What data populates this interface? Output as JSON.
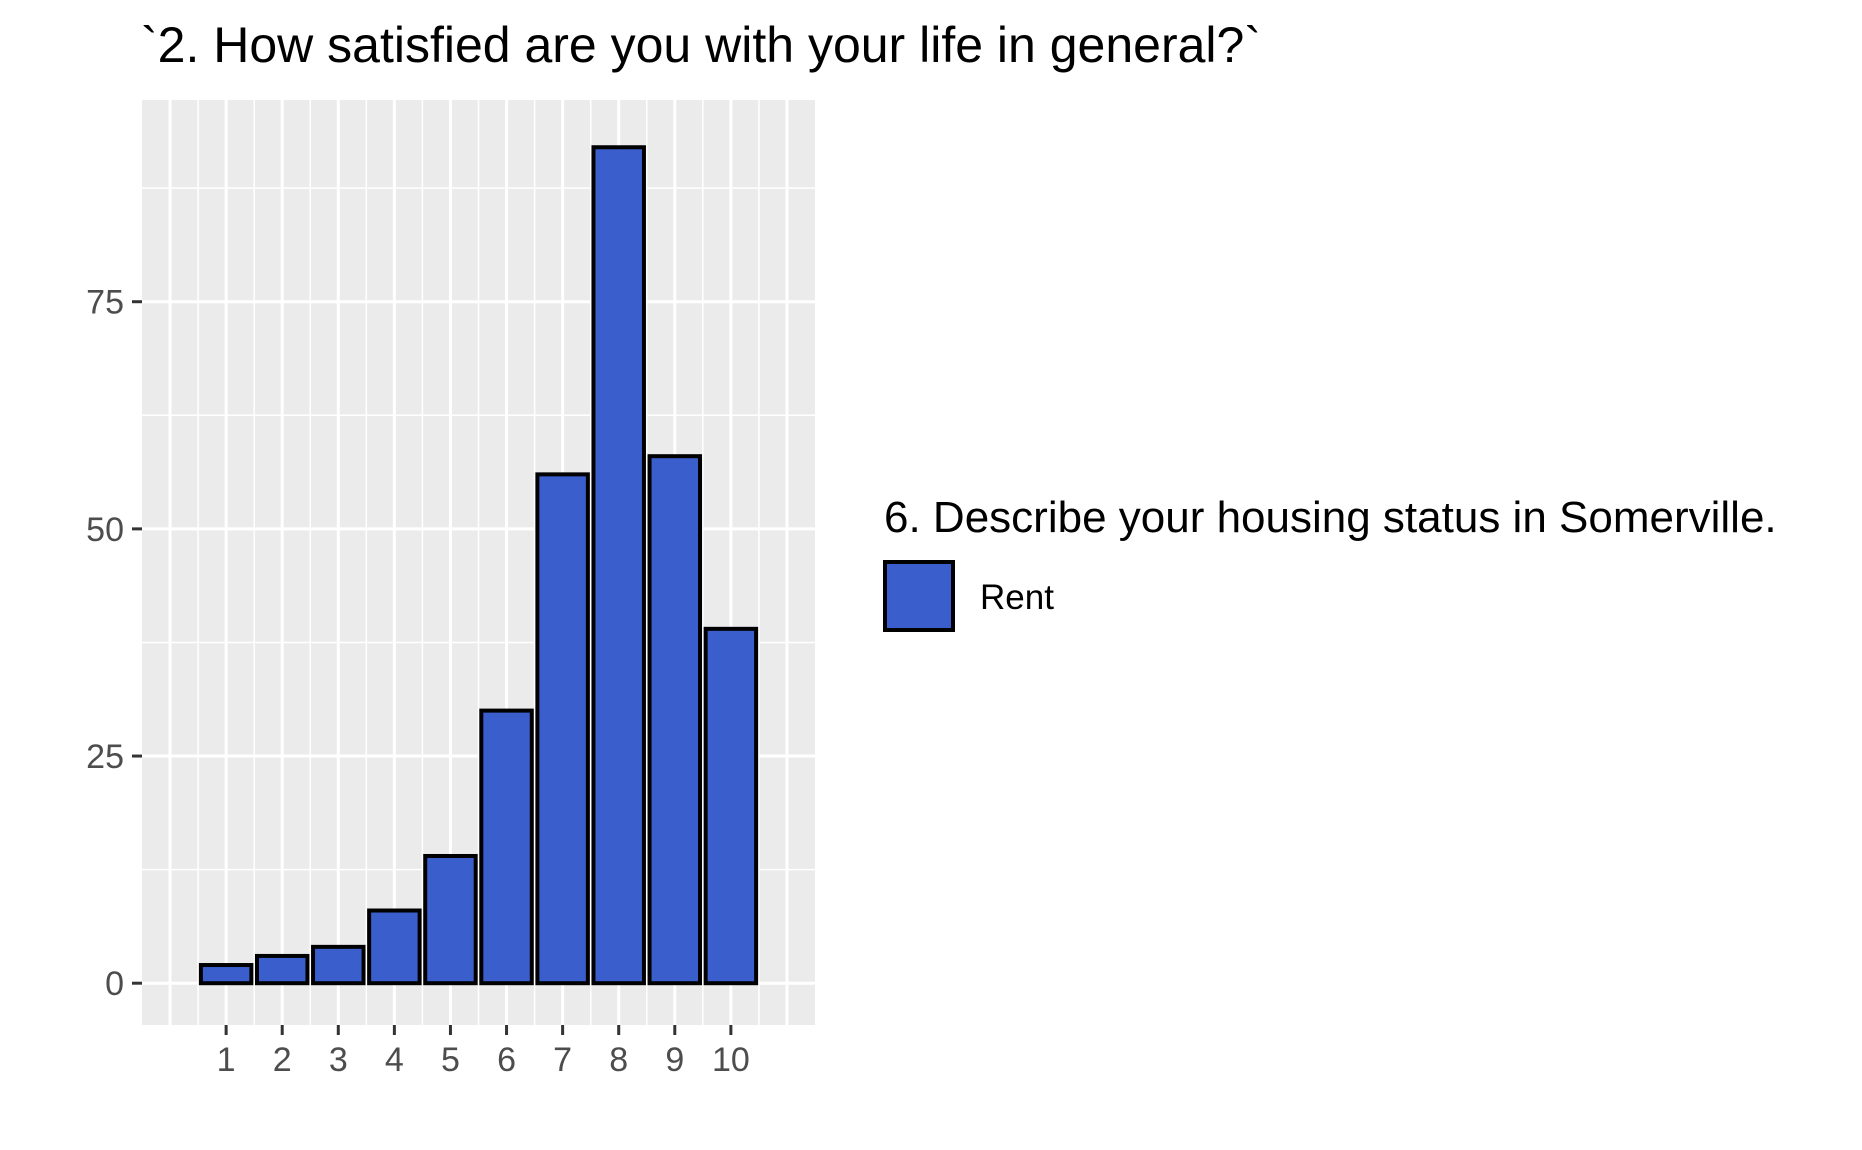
{
  "chart_data": {
    "type": "bar",
    "title": "`2. How satisfied are you with your life in general?`",
    "xlabel": "",
    "ylabel": "",
    "categories": [
      "1",
      "2",
      "3",
      "4",
      "5",
      "6",
      "7",
      "8",
      "9",
      "10"
    ],
    "series": [
      {
        "name": "Rent",
        "values": [
          2,
          3,
          4,
          8,
          14,
          30,
          56,
          92,
          58,
          39
        ]
      }
    ],
    "xlim": [
      -0.5,
      11.5
    ],
    "ylim": [
      -4.6,
      97.2
    ],
    "y_ticks": [
      0,
      25,
      50,
      75
    ],
    "grid": true,
    "legend": {
      "title": "6. Describe your housing status in Somerville.",
      "position": "right"
    },
    "colors": {
      "bar_fill": "#3a5fcd",
      "bar_stroke": "#000000",
      "panel_bg": "#ebebeb",
      "grid": "#ffffff"
    }
  }
}
